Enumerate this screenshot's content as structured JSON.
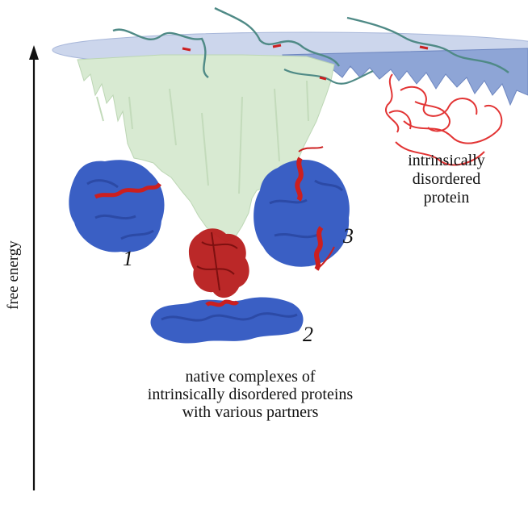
{
  "axis": {
    "label": "free energy"
  },
  "idp": {
    "line1": "intrinsically",
    "line2": "disordered",
    "line3": "protein"
  },
  "caption": {
    "line1": "native complexes of",
    "line2": "intrinsically disordered proteins",
    "line3": "with various partners"
  },
  "complexes": [
    {
      "number": "1"
    },
    {
      "number": "2"
    },
    {
      "number": "3"
    }
  ],
  "colors": {
    "partner": "#3a5fc4",
    "idp": "#cc1f1f",
    "funnel": "#d8ead2",
    "plane": "#aebfe0",
    "disc": "#c7d2ea",
    "chain": "#4f8a86"
  }
}
